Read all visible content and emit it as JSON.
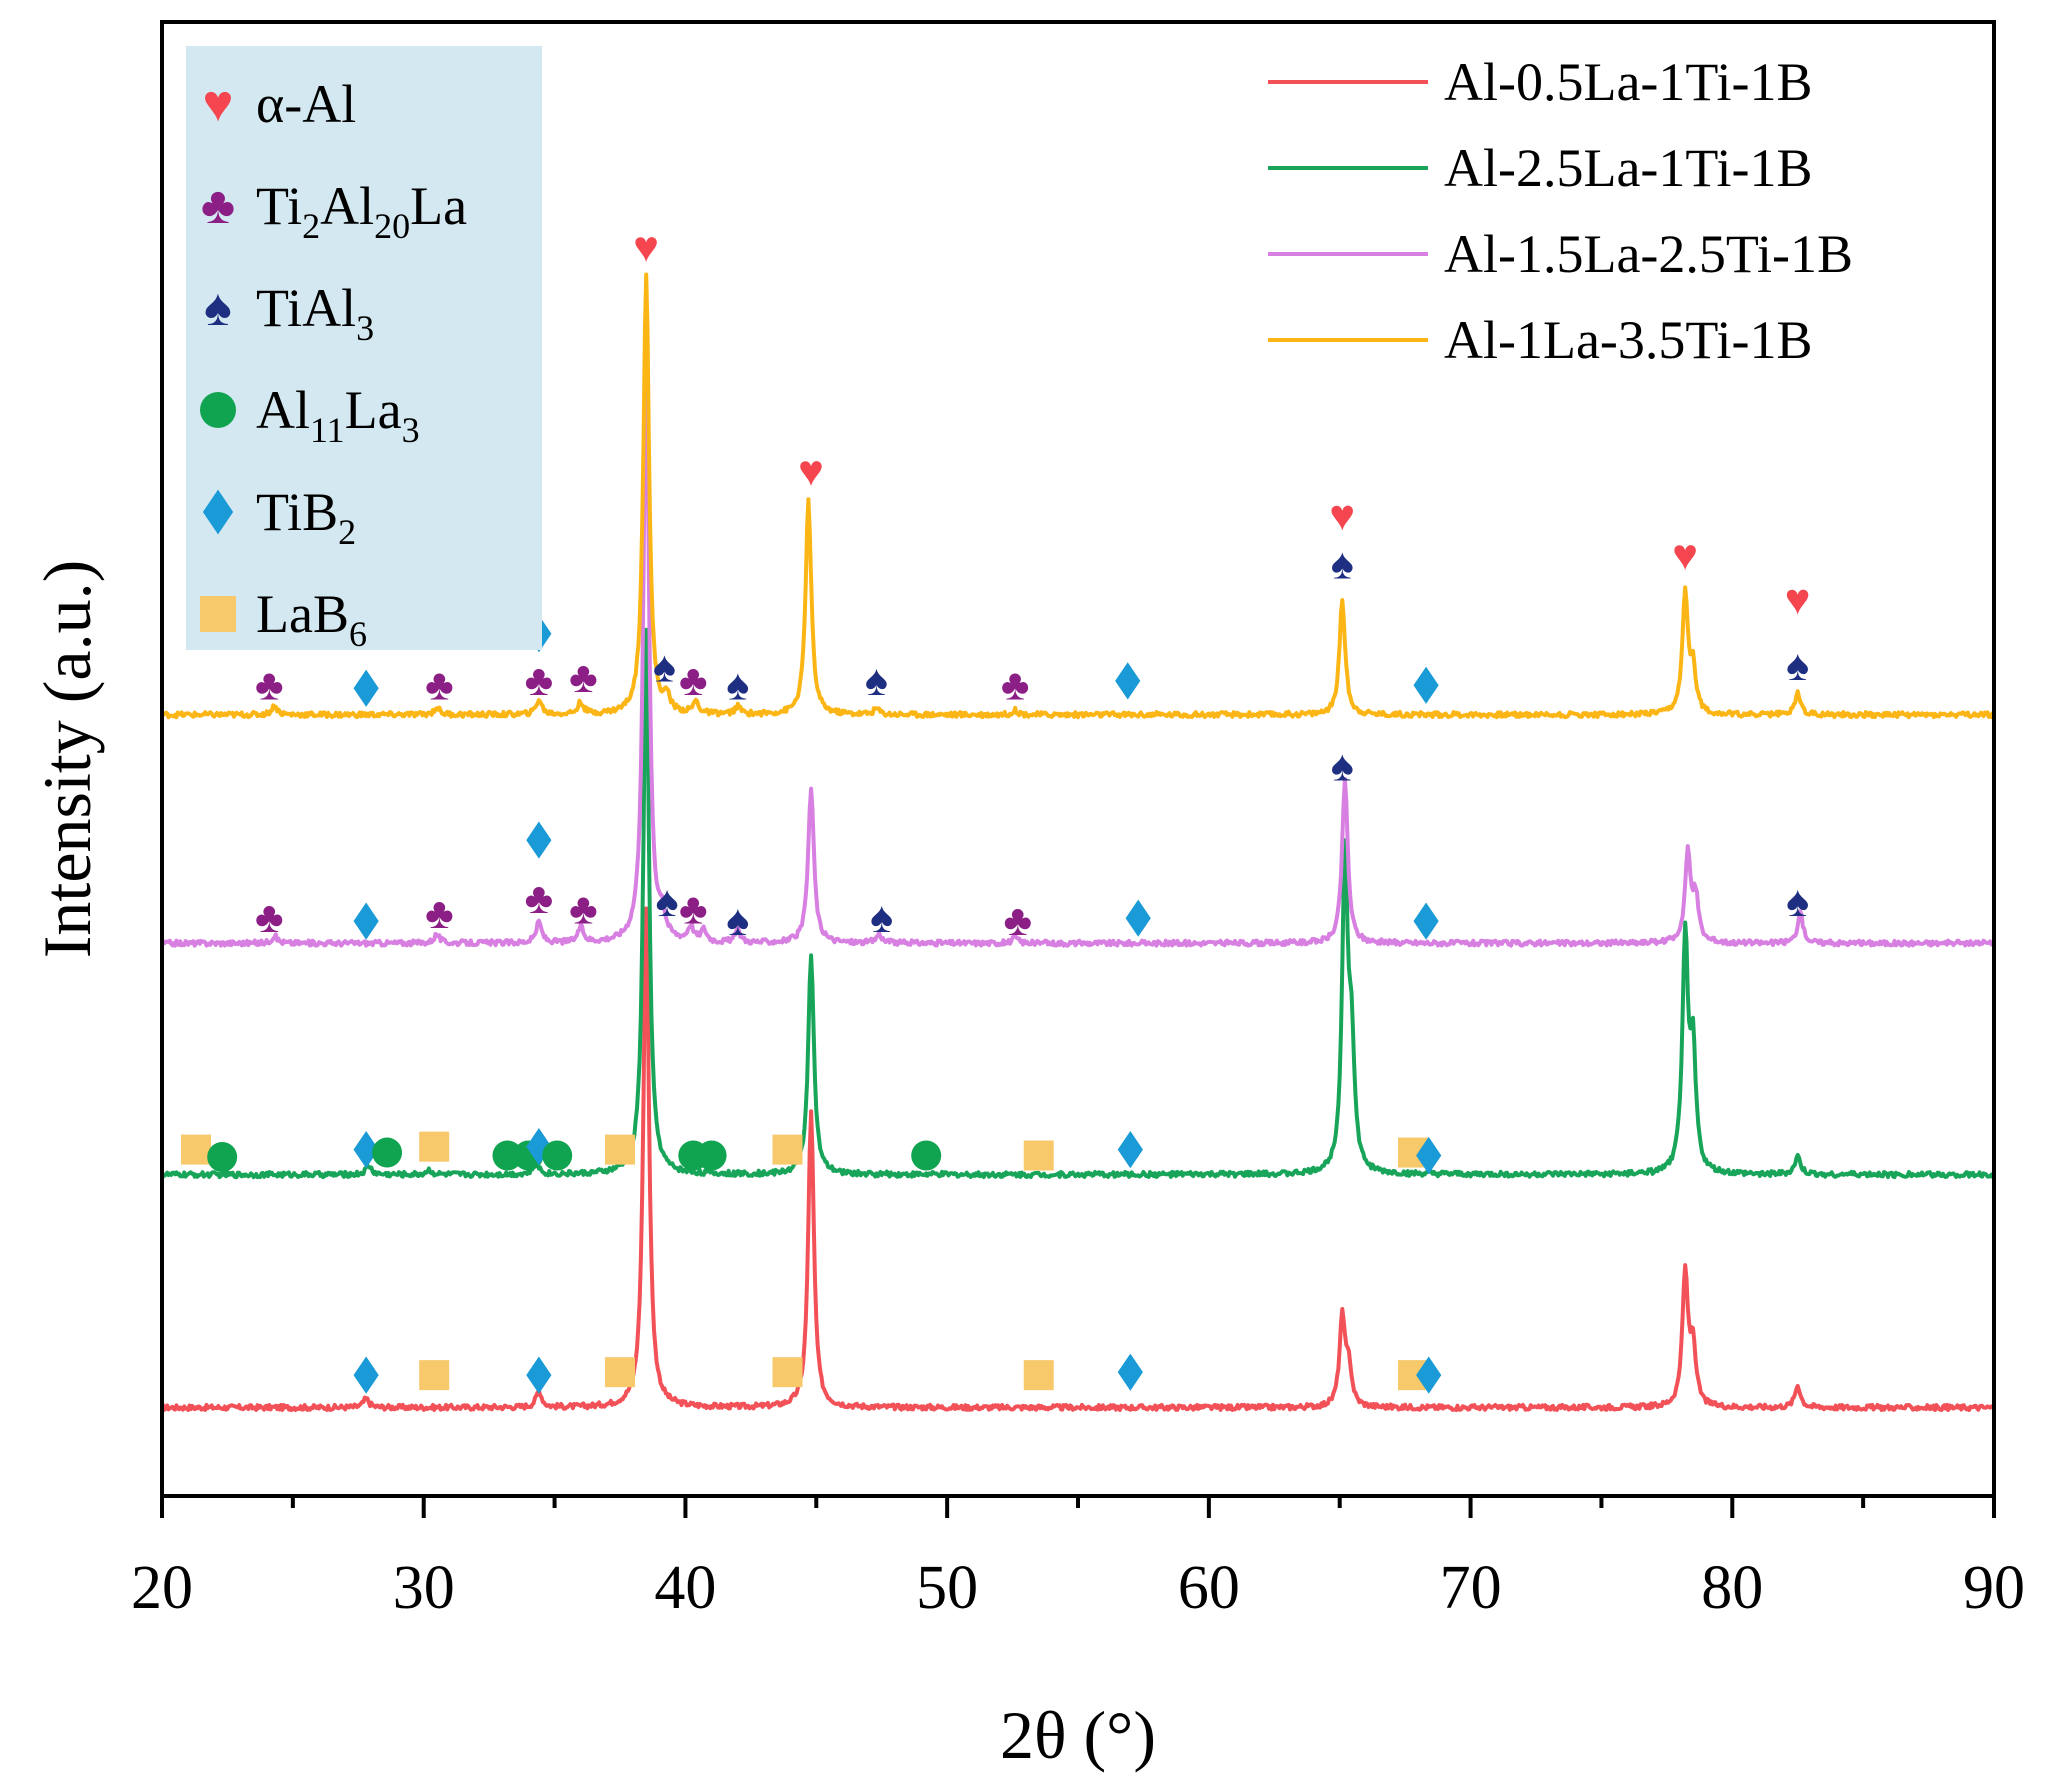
{
  "chart_data": {
    "type": "line",
    "xlabel": "2θ (°)",
    "ylabel": "Intensity (a.u.)",
    "xlim": [
      20,
      90
    ],
    "ylim": [
      0,
      100
    ],
    "xticks": [
      20,
      30,
      40,
      50,
      60,
      70,
      80,
      90
    ],
    "grid": false,
    "legend_position": "top-right",
    "colors": {
      "alpha_al": "#f5464f",
      "ti2al20la": "#8b1f86",
      "tial3": "#1e2f82",
      "al11la3": "#10a450",
      "tib2": "#1a9ad6",
      "lab6": "#f7c96b",
      "phase_legend_bg": "#d3e8f0"
    },
    "phase_legend": [
      {
        "key": "alpha_al",
        "symbol": "heart",
        "parts": [
          {
            "text": "α-Al",
            "sub": false
          }
        ]
      },
      {
        "key": "ti2al20la",
        "symbol": "club",
        "parts": [
          {
            "text": "Ti",
            "sub": false
          },
          {
            "text": "2",
            "sub": true
          },
          {
            "text": "Al",
            "sub": false
          },
          {
            "text": "20",
            "sub": true
          },
          {
            "text": "La",
            "sub": false
          }
        ]
      },
      {
        "key": "tial3",
        "symbol": "spade",
        "parts": [
          {
            "text": "TiAl",
            "sub": false
          },
          {
            "text": "3",
            "sub": true
          }
        ]
      },
      {
        "key": "al11la3",
        "symbol": "circle",
        "parts": [
          {
            "text": "Al",
            "sub": false
          },
          {
            "text": "11",
            "sub": true
          },
          {
            "text": "La",
            "sub": false
          },
          {
            "text": "3",
            "sub": true
          }
        ]
      },
      {
        "key": "tib2",
        "symbol": "diamond",
        "parts": [
          {
            "text": "TiB",
            "sub": false
          },
          {
            "text": "2",
            "sub": true
          }
        ]
      },
      {
        "key": "lab6",
        "symbol": "square",
        "parts": [
          {
            "text": "LaB",
            "sub": false
          },
          {
            "text": "6",
            "sub": true
          }
        ]
      }
    ],
    "series": [
      {
        "name": "Al-0.5La-1Ti-1B",
        "color": "#f25158",
        "baseline": 6,
        "peaks": [
          [
            27.8,
            0.6
          ],
          [
            34.4,
            1.1
          ],
          [
            38.5,
            34
          ],
          [
            44.8,
            20
          ],
          [
            65.1,
            6
          ],
          [
            65.35,
            2.5
          ],
          [
            78.2,
            9
          ],
          [
            78.5,
            4
          ],
          [
            82.5,
            1.5
          ]
        ],
        "markers": [
          {
            "x": 27.8,
            "y": 8.2,
            "phase": "tib2"
          },
          {
            "x": 30.4,
            "y": 8.2,
            "phase": "lab6"
          },
          {
            "x": 34.4,
            "y": 8.2,
            "phase": "tib2"
          },
          {
            "x": 37.5,
            "y": 8.4,
            "phase": "lab6"
          },
          {
            "x": 43.9,
            "y": 8.4,
            "phase": "lab6"
          },
          {
            "x": 53.5,
            "y": 8.2,
            "phase": "lab6"
          },
          {
            "x": 57.0,
            "y": 8.4,
            "phase": "tib2"
          },
          {
            "x": 67.8,
            "y": 8.2,
            "phase": "lab6"
          },
          {
            "x": 68.4,
            "y": 8.2,
            "phase": "tib2"
          }
        ]
      },
      {
        "name": "Al-2.5La-1Ti-1B",
        "color": "#18a55a",
        "baseline": 21.8,
        "peaks": [
          [
            27.9,
            0.6
          ],
          [
            30.2,
            0.3
          ],
          [
            34.3,
            0.8
          ],
          [
            38.5,
            37
          ],
          [
            44.8,
            15
          ],
          [
            65.2,
            21
          ],
          [
            65.45,
            8
          ],
          [
            78.2,
            16
          ],
          [
            78.5,
            8
          ],
          [
            82.5,
            1.2
          ]
        ],
        "markers": [
          {
            "x": 21.3,
            "y": 23.5,
            "phase": "lab6"
          },
          {
            "x": 22.3,
            "y": 23.0,
            "phase": "al11la3"
          },
          {
            "x": 27.8,
            "y": 23.5,
            "phase": "tib2"
          },
          {
            "x": 28.6,
            "y": 23.3,
            "phase": "al11la3"
          },
          {
            "x": 30.4,
            "y": 23.7,
            "phase": "lab6"
          },
          {
            "x": 33.2,
            "y": 23.1,
            "phase": "al11la3"
          },
          {
            "x": 34.0,
            "y": 23.1,
            "phase": "al11la3"
          },
          {
            "x": 34.4,
            "y": 23.7,
            "phase": "tib2"
          },
          {
            "x": 35.1,
            "y": 23.1,
            "phase": "al11la3"
          },
          {
            "x": 37.5,
            "y": 23.5,
            "phase": "lab6"
          },
          {
            "x": 40.3,
            "y": 23.1,
            "phase": "al11la3"
          },
          {
            "x": 41.0,
            "y": 23.1,
            "phase": "al11la3"
          },
          {
            "x": 43.9,
            "y": 23.5,
            "phase": "lab6"
          },
          {
            "x": 49.2,
            "y": 23.1,
            "phase": "al11la3"
          },
          {
            "x": 53.5,
            "y": 23.1,
            "phase": "lab6"
          },
          {
            "x": 57.0,
            "y": 23.5,
            "phase": "tib2"
          },
          {
            "x": 67.8,
            "y": 23.3,
            "phase": "lab6"
          },
          {
            "x": 68.4,
            "y": 23.1,
            "phase": "tib2"
          }
        ]
      },
      {
        "name": "Al-1.5La-2.5Ti-1B",
        "color": "#d880e2",
        "baseline": 37.5,
        "peaks": [
          [
            24.3,
            0.5
          ],
          [
            30.5,
            0.6
          ],
          [
            34.4,
            1.4
          ],
          [
            36.0,
            1.0
          ],
          [
            38.5,
            40
          ],
          [
            39.1,
            1.5
          ],
          [
            40.2,
            1.0
          ],
          [
            40.7,
            0.8
          ],
          [
            42.0,
            0.8
          ],
          [
            44.8,
            10.5
          ],
          [
            47.4,
            0.6
          ],
          [
            52.6,
            0.4
          ],
          [
            65.2,
            11
          ],
          [
            78.3,
            6
          ],
          [
            78.6,
            3
          ],
          [
            82.6,
            2
          ]
        ],
        "markers": [
          {
            "x": 24.1,
            "y": 39.2,
            "phase": "ti2al20la"
          },
          {
            "x": 27.8,
            "y": 39.0,
            "phase": "tib2"
          },
          {
            "x": 30.6,
            "y": 39.5,
            "phase": "ti2al20la"
          },
          {
            "x": 34.4,
            "y": 44.5,
            "phase": "tib2"
          },
          {
            "x": 34.4,
            "y": 40.5,
            "phase": "ti2al20la"
          },
          {
            "x": 36.1,
            "y": 39.8,
            "phase": "ti2al20la"
          },
          {
            "x": 39.3,
            "y": 40.3,
            "phase": "tial3"
          },
          {
            "x": 40.3,
            "y": 39.8,
            "phase": "ti2al20la"
          },
          {
            "x": 42.0,
            "y": 39.0,
            "phase": "tial3"
          },
          {
            "x": 47.5,
            "y": 39.2,
            "phase": "tial3"
          },
          {
            "x": 52.7,
            "y": 39.0,
            "phase": "ti2al20la"
          },
          {
            "x": 57.3,
            "y": 39.2,
            "phase": "tib2"
          },
          {
            "x": 65.1,
            "y": 49.5,
            "phase": "tial3"
          },
          {
            "x": 68.3,
            "y": 39.0,
            "phase": "tib2"
          },
          {
            "x": 82.5,
            "y": 40.3,
            "phase": "tial3"
          }
        ]
      },
      {
        "name": "Al-1La-3.5Ti-1B",
        "color": "#fbb515",
        "baseline": 53,
        "peaks": [
          [
            24.3,
            0.6
          ],
          [
            30.5,
            0.5
          ],
          [
            34.4,
            1.0
          ],
          [
            36.0,
            0.8
          ],
          [
            38.5,
            30
          ],
          [
            39.3,
            1.0
          ],
          [
            40.4,
            0.8
          ],
          [
            42.0,
            0.5
          ],
          [
            44.7,
            14.5
          ],
          [
            47.3,
            0.4
          ],
          [
            52.6,
            0.3
          ],
          [
            65.1,
            7.8
          ],
          [
            78.2,
            8
          ],
          [
            78.5,
            3
          ],
          [
            82.5,
            1.5
          ]
        ],
        "markers": [
          {
            "x": 24.1,
            "y": 55.0,
            "phase": "ti2al20la"
          },
          {
            "x": 27.8,
            "y": 54.8,
            "phase": "tib2"
          },
          {
            "x": 30.6,
            "y": 55.0,
            "phase": "ti2al20la"
          },
          {
            "x": 34.4,
            "y": 58.5,
            "phase": "tib2"
          },
          {
            "x": 34.4,
            "y": 55.3,
            "phase": "ti2al20la"
          },
          {
            "x": 36.1,
            "y": 55.5,
            "phase": "ti2al20la"
          },
          {
            "x": 38.5,
            "y": 84.7,
            "phase": "alpha_al"
          },
          {
            "x": 39.2,
            "y": 56.2,
            "phase": "tial3"
          },
          {
            "x": 40.3,
            "y": 55.3,
            "phase": "ti2al20la"
          },
          {
            "x": 42.0,
            "y": 55.0,
            "phase": "tial3"
          },
          {
            "x": 44.8,
            "y": 69.5,
            "phase": "alpha_al"
          },
          {
            "x": 47.3,
            "y": 55.3,
            "phase": "tial3"
          },
          {
            "x": 52.6,
            "y": 55.0,
            "phase": "ti2al20la"
          },
          {
            "x": 56.9,
            "y": 55.3,
            "phase": "tib2"
          },
          {
            "x": 65.1,
            "y": 66.5,
            "phase": "alpha_al"
          },
          {
            "x": 65.1,
            "y": 63.2,
            "phase": "tial3"
          },
          {
            "x": 68.3,
            "y": 55.0,
            "phase": "tib2"
          },
          {
            "x": 78.2,
            "y": 63.8,
            "phase": "alpha_al"
          },
          {
            "x": 82.5,
            "y": 60.8,
            "phase": "alpha_al"
          },
          {
            "x": 82.5,
            "y": 56.3,
            "phase": "tial3"
          }
        ]
      }
    ]
  }
}
